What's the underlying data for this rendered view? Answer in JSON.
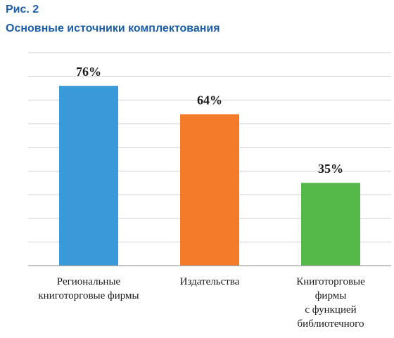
{
  "figure": {
    "label": "Рис. 2",
    "title": "Основные источники комплектования"
  },
  "chart_data": {
    "type": "bar",
    "title": "Основные источники комплектования",
    "categories": [
      [
        "Региональные",
        "книготорговые фирмы"
      ],
      [
        "Издательства"
      ],
      [
        "Книготорговые",
        "фирмы",
        "с функцией",
        "библиотечного"
      ]
    ],
    "values": [
      76,
      64,
      35
    ],
    "data_labels": [
      "76%",
      "64%",
      "35%"
    ],
    "colors": [
      "#3a9ad9",
      "#f47b29",
      "#55b94a"
    ],
    "ylim": [
      0,
      90
    ],
    "grid": true,
    "legend": "none"
  }
}
